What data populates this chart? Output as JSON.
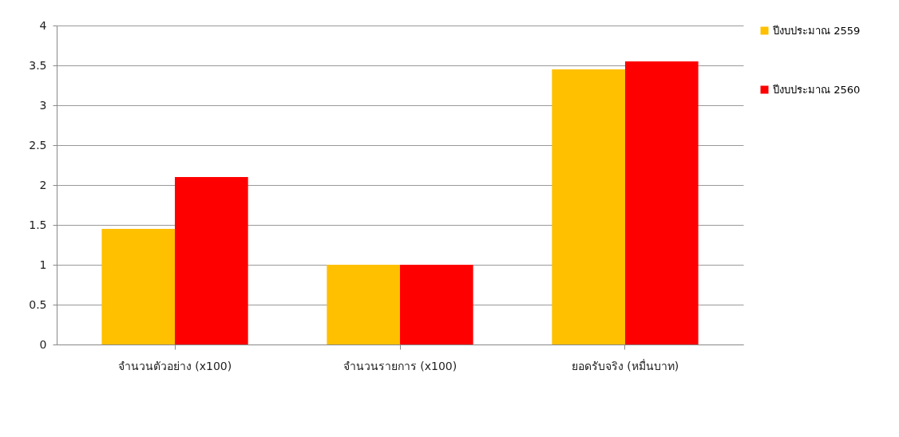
{
  "chart_data": {
    "type": "bar",
    "categories": [
      "จำนวนตัวอย่าง (x100)",
      "จำนวนรายการ (x100)",
      "ยอดรับจริง (หมื่นบาท)"
    ],
    "series": [
      {
        "name": "ปีงบประมาณ 2559",
        "color": "#ffc000",
        "values": [
          1.45,
          1,
          3.45
        ]
      },
      {
        "name": "ปีงบประมาณ 2560",
        "color": "#ff0000",
        "values": [
          2.1,
          1,
          3.55
        ]
      }
    ],
    "ylim": [
      0,
      4
    ],
    "yticks": [
      0,
      0.5,
      1,
      1.5,
      2,
      2.5,
      3,
      3.5,
      4
    ],
    "grid": "y",
    "legend": "right"
  }
}
